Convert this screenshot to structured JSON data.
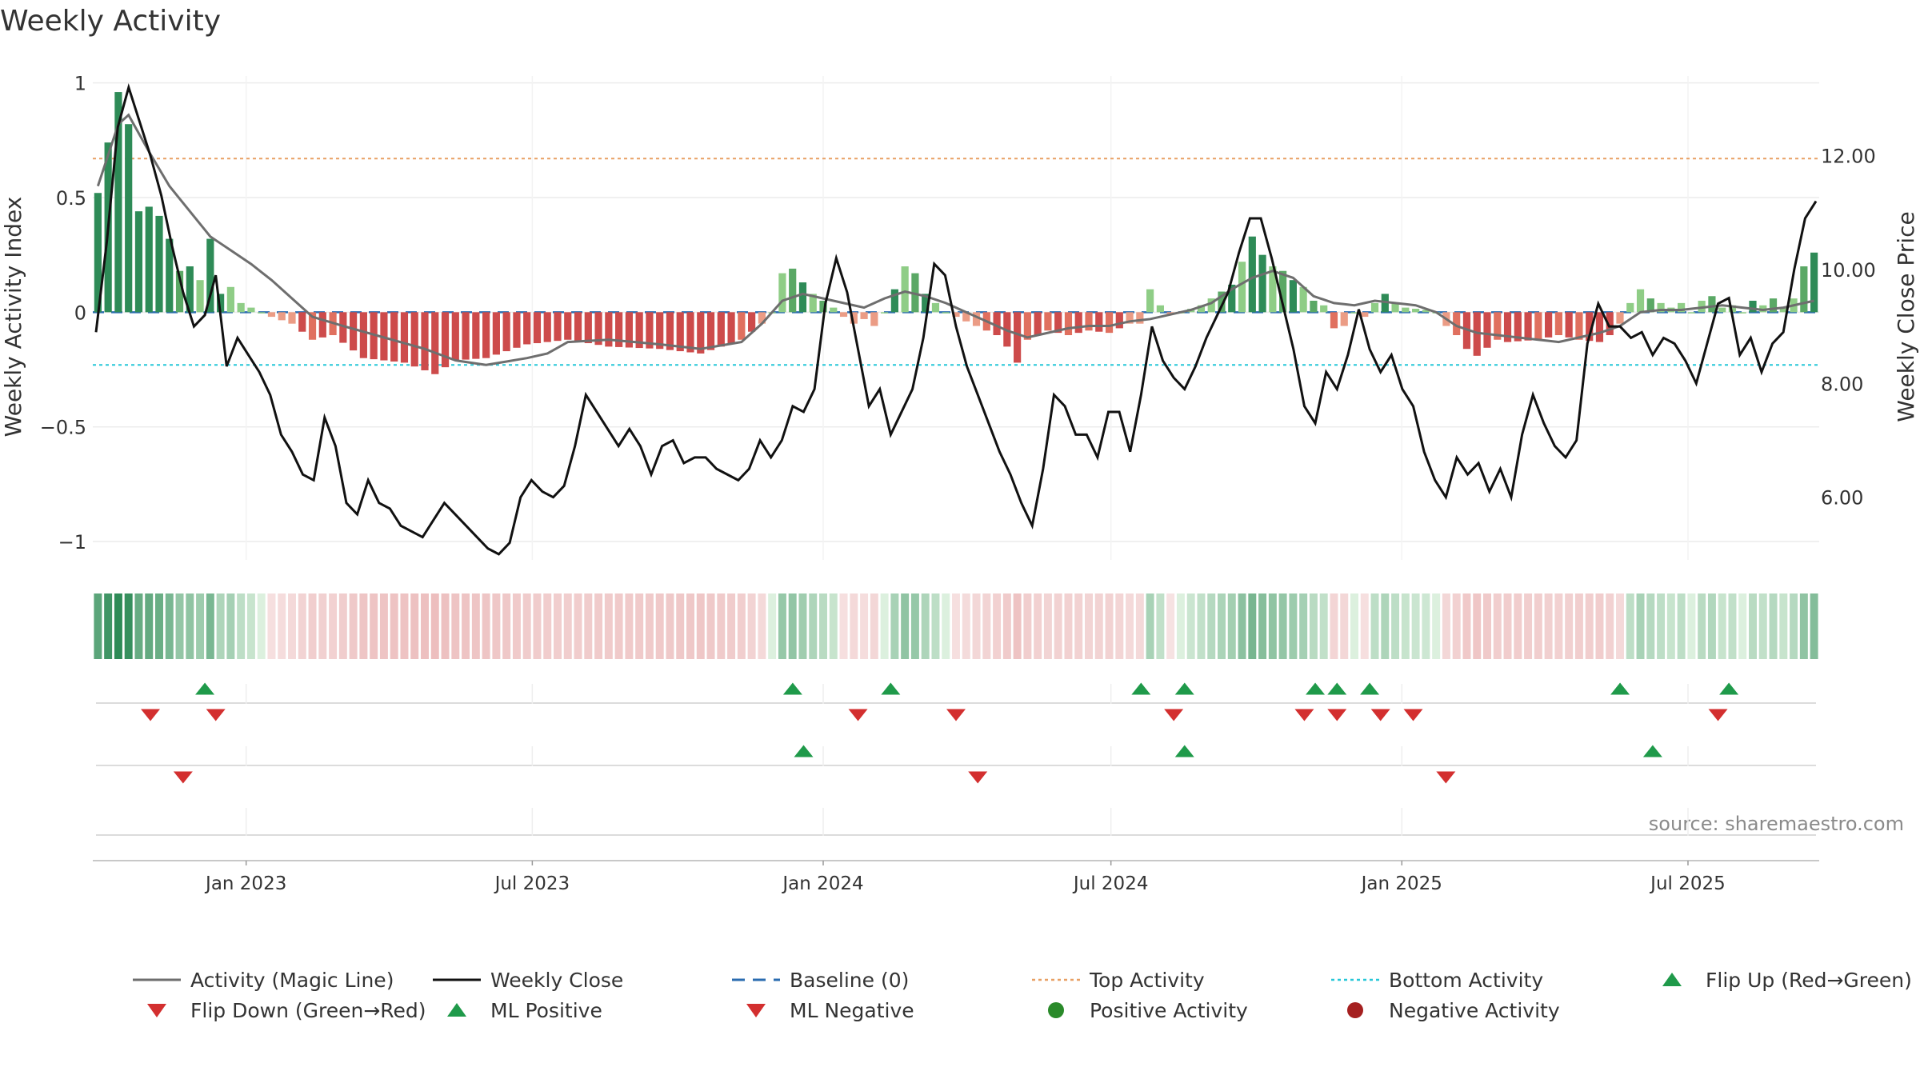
{
  "chart_data": {
    "type": "bar+line",
    "title": "Weekly Activity",
    "ylabel_left": "Weekly Activity Index",
    "ylabel_right": "Weekly Close Price",
    "source": "source: sharemaestro.com",
    "left_axis": {
      "ylim": [
        -1.08,
        1.03
      ],
      "ticks": [
        1,
        0.5,
        0,
        -0.5,
        -1
      ],
      "tick_labels": [
        "1",
        "0.5",
        "0",
        "−0.5",
        "−1"
      ]
    },
    "right_axis": {
      "ylim": [
        4.9,
        13.4
      ],
      "ticks": [
        12,
        10,
        8,
        6
      ],
      "tick_labels": [
        "12.00",
        "10.00",
        "8.00",
        "6.00"
      ]
    },
    "x_axis": {
      "start_date": "2022-09-26",
      "end_date": "2025-09-22",
      "ticks": [
        {
          "date": "2023-01-01",
          "label": "Jan 2023"
        },
        {
          "date": "2023-07-01",
          "label": "Jul 2023"
        },
        {
          "date": "2024-01-01",
          "label": "Jan 2024"
        },
        {
          "date": "2024-07-01",
          "label": "Jul 2024"
        },
        {
          "date": "2025-01-01",
          "label": "Jan 2025"
        },
        {
          "date": "2025-07-01",
          "label": "Jul 2025"
        }
      ]
    },
    "reference_lines": {
      "baseline": 0,
      "top_activity": 0.67,
      "bottom_activity": -0.23
    },
    "activity_anchors": [
      [
        0,
        0.52
      ],
      [
        2,
        0.96
      ],
      [
        3,
        0.82
      ],
      [
        4,
        0.44
      ],
      [
        5,
        0.46
      ],
      [
        6,
        0.42
      ],
      [
        7,
        0.32
      ],
      [
        8,
        0.18
      ],
      [
        9,
        0.2
      ],
      [
        10,
        0.14
      ],
      [
        11,
        0.32
      ],
      [
        12,
        0.08
      ],
      [
        13,
        0.11
      ],
      [
        14,
        0.04
      ],
      [
        15,
        0.02
      ],
      [
        16,
        0.0
      ],
      [
        17,
        -0.02
      ],
      [
        19,
        -0.05
      ],
      [
        21,
        -0.12
      ],
      [
        23,
        -0.1
      ],
      [
        26,
        -0.2
      ],
      [
        30,
        -0.22
      ],
      [
        33,
        -0.27
      ],
      [
        35,
        -0.21
      ],
      [
        38,
        -0.2
      ],
      [
        42,
        -0.14
      ],
      [
        46,
        -0.12
      ],
      [
        50,
        -0.15
      ],
      [
        55,
        -0.16
      ],
      [
        59,
        -0.18
      ],
      [
        63,
        -0.12
      ],
      [
        65,
        -0.05
      ],
      [
        66,
        0.0
      ],
      [
        67,
        0.17
      ],
      [
        68,
        0.19
      ],
      [
        69,
        0.13
      ],
      [
        70,
        0.08
      ],
      [
        72,
        0.02
      ],
      [
        73,
        -0.02
      ],
      [
        74,
        -0.05
      ],
      [
        75,
        -0.03
      ],
      [
        76,
        -0.06
      ],
      [
        77,
        0.0
      ],
      [
        79,
        0.2
      ],
      [
        80,
        0.17
      ],
      [
        81,
        0.08
      ],
      [
        82,
        0.04
      ],
      [
        83,
        0.0
      ],
      [
        84,
        -0.02
      ],
      [
        86,
        -0.06
      ],
      [
        88,
        -0.1
      ],
      [
        89,
        -0.15
      ],
      [
        90,
        -0.22
      ],
      [
        91,
        -0.12
      ],
      [
        93,
        -0.08
      ],
      [
        95,
        -0.1
      ],
      [
        97,
        -0.08
      ],
      [
        99,
        -0.09
      ],
      [
        101,
        -0.05
      ],
      [
        102,
        -0.05
      ],
      [
        103,
        0.1
      ],
      [
        104,
        0.03
      ],
      [
        105,
        -0.01
      ],
      [
        106,
        0.0
      ],
      [
        108,
        0.03
      ],
      [
        109,
        0.06
      ],
      [
        110,
        0.09
      ],
      [
        111,
        0.12
      ],
      [
        112,
        0.22
      ],
      [
        113,
        0.33
      ],
      [
        114,
        0.25
      ],
      [
        115,
        0.2
      ],
      [
        116,
        0.18
      ],
      [
        117,
        0.14
      ],
      [
        118,
        0.11
      ],
      [
        119,
        0.05
      ],
      [
        120,
        0.03
      ],
      [
        121,
        -0.07
      ],
      [
        122,
        -0.06
      ],
      [
        123,
        0.0
      ],
      [
        124,
        -0.02
      ],
      [
        125,
        0.04
      ],
      [
        126,
        0.08
      ],
      [
        127,
        0.04
      ],
      [
        128,
        0.02
      ],
      [
        130,
        0.01
      ],
      [
        131,
        0.0
      ],
      [
        132,
        -0.06
      ],
      [
        133,
        -0.1
      ],
      [
        134,
        -0.16
      ],
      [
        135,
        -0.19
      ],
      [
        137,
        -0.12
      ],
      [
        138,
        -0.13
      ],
      [
        141,
        -0.12
      ],
      [
        143,
        -0.1
      ],
      [
        145,
        -0.12
      ],
      [
        147,
        -0.13
      ],
      [
        148,
        -0.1
      ],
      [
        149,
        -0.05
      ],
      [
        150,
        0.04
      ],
      [
        151,
        0.1
      ],
      [
        152,
        0.06
      ],
      [
        153,
        0.04
      ],
      [
        154,
        0.02
      ],
      [
        155,
        0.04
      ],
      [
        156,
        0.0
      ],
      [
        157,
        0.05
      ],
      [
        158,
        0.07
      ],
      [
        159,
        0.02
      ],
      [
        160,
        0.03
      ],
      [
        161,
        0.0
      ],
      [
        162,
        0.05
      ],
      [
        163,
        0.03
      ],
      [
        164,
        0.06
      ],
      [
        165,
        0.02
      ],
      [
        166,
        0.06
      ],
      [
        167,
        0.2
      ],
      [
        168,
        0.26
      ]
    ],
    "magic_line_anchors": [
      [
        0,
        0.55
      ],
      [
        2,
        0.82
      ],
      [
        3,
        0.86
      ],
      [
        5,
        0.7
      ],
      [
        7,
        0.55
      ],
      [
        9,
        0.44
      ],
      [
        11,
        0.33
      ],
      [
        13,
        0.27
      ],
      [
        15,
        0.21
      ],
      [
        17,
        0.14
      ],
      [
        19,
        0.06
      ],
      [
        21,
        -0.02
      ],
      [
        24,
        -0.06
      ],
      [
        28,
        -0.11
      ],
      [
        32,
        -0.16
      ],
      [
        35,
        -0.21
      ],
      [
        38,
        -0.23
      ],
      [
        42,
        -0.2
      ],
      [
        44,
        -0.18
      ],
      [
        46,
        -0.13
      ],
      [
        50,
        -0.12
      ],
      [
        55,
        -0.14
      ],
      [
        59,
        -0.16
      ],
      [
        63,
        -0.13
      ],
      [
        65,
        -0.05
      ],
      [
        67,
        0.05
      ],
      [
        69,
        0.08
      ],
      [
        71,
        0.06
      ],
      [
        73,
        0.04
      ],
      [
        75,
        0.02
      ],
      [
        77,
        0.06
      ],
      [
        79,
        0.09
      ],
      [
        81,
        0.07
      ],
      [
        83,
        0.04
      ],
      [
        85,
        0.0
      ],
      [
        87,
        -0.04
      ],
      [
        89,
        -0.08
      ],
      [
        91,
        -0.11
      ],
      [
        93,
        -0.09
      ],
      [
        95,
        -0.07
      ],
      [
        97,
        -0.06
      ],
      [
        99,
        -0.06
      ],
      [
        101,
        -0.04
      ],
      [
        103,
        -0.03
      ],
      [
        105,
        -0.01
      ],
      [
        107,
        0.01
      ],
      [
        109,
        0.04
      ],
      [
        111,
        0.1
      ],
      [
        113,
        0.15
      ],
      [
        115,
        0.18
      ],
      [
        117,
        0.15
      ],
      [
        119,
        0.07
      ],
      [
        121,
        0.04
      ],
      [
        123,
        0.03
      ],
      [
        125,
        0.05
      ],
      [
        127,
        0.04
      ],
      [
        129,
        0.03
      ],
      [
        131,
        0.0
      ],
      [
        133,
        -0.06
      ],
      [
        135,
        -0.09
      ],
      [
        137,
        -0.1
      ],
      [
        139,
        -0.11
      ],
      [
        141,
        -0.12
      ],
      [
        143,
        -0.13
      ],
      [
        145,
        -0.11
      ],
      [
        147,
        -0.09
      ],
      [
        149,
        -0.06
      ],
      [
        151,
        0.0
      ],
      [
        153,
        0.01
      ],
      [
        155,
        0.01
      ],
      [
        157,
        0.02
      ],
      [
        159,
        0.03
      ],
      [
        161,
        0.02
      ],
      [
        163,
        0.01
      ],
      [
        165,
        0.02
      ],
      [
        167,
        0.04
      ],
      [
        168,
        0.05
      ]
    ],
    "close_anchors": [
      [
        0,
        8.9
      ],
      [
        1,
        10.5
      ],
      [
        2,
        12.5
      ],
      [
        3,
        13.2
      ],
      [
        4,
        12.6
      ],
      [
        5,
        12.0
      ],
      [
        6,
        11.3
      ],
      [
        7,
        10.4
      ],
      [
        8,
        9.6
      ],
      [
        9,
        9.0
      ],
      [
        10,
        9.2
      ],
      [
        11,
        9.9
      ],
      [
        12,
        8.3
      ],
      [
        13,
        8.8
      ],
      [
        14,
        8.5
      ],
      [
        15,
        8.2
      ],
      [
        16,
        7.8
      ],
      [
        17,
        7.1
      ],
      [
        18,
        6.8
      ],
      [
        19,
        6.4
      ],
      [
        20,
        6.3
      ],
      [
        21,
        7.4
      ],
      [
        22,
        6.9
      ],
      [
        23,
        5.9
      ],
      [
        24,
        5.7
      ],
      [
        25,
        6.3
      ],
      [
        26,
        5.9
      ],
      [
        27,
        5.8
      ],
      [
        28,
        5.5
      ],
      [
        29,
        5.4
      ],
      [
        30,
        5.3
      ],
      [
        31,
        5.6
      ],
      [
        32,
        5.9
      ],
      [
        33,
        5.7
      ],
      [
        34,
        5.5
      ],
      [
        35,
        5.3
      ],
      [
        36,
        5.1
      ],
      [
        37,
        5.0
      ],
      [
        38,
        5.2
      ],
      [
        39,
        6.0
      ],
      [
        40,
        6.3
      ],
      [
        41,
        6.1
      ],
      [
        42,
        6.0
      ],
      [
        43,
        6.2
      ],
      [
        44,
        6.9
      ],
      [
        45,
        7.8
      ],
      [
        46,
        7.5
      ],
      [
        47,
        7.2
      ],
      [
        48,
        6.9
      ],
      [
        49,
        7.2
      ],
      [
        50,
        6.9
      ],
      [
        51,
        6.4
      ],
      [
        52,
        6.9
      ],
      [
        53,
        7.0
      ],
      [
        54,
        6.6
      ],
      [
        55,
        6.7
      ],
      [
        56,
        6.7
      ],
      [
        57,
        6.5
      ],
      [
        58,
        6.4
      ],
      [
        59,
        6.3
      ],
      [
        60,
        6.5
      ],
      [
        61,
        7.0
      ],
      [
        62,
        6.7
      ],
      [
        63,
        7.0
      ],
      [
        64,
        7.6
      ],
      [
        65,
        7.5
      ],
      [
        66,
        7.9
      ],
      [
        67,
        9.4
      ],
      [
        68,
        10.2
      ],
      [
        69,
        9.6
      ],
      [
        70,
        8.6
      ],
      [
        71,
        7.6
      ],
      [
        72,
        7.9
      ],
      [
        73,
        7.1
      ],
      [
        74,
        7.5
      ],
      [
        75,
        7.9
      ],
      [
        76,
        8.8
      ],
      [
        77,
        10.1
      ],
      [
        78,
        9.9
      ],
      [
        79,
        9.0
      ],
      [
        80,
        8.3
      ],
      [
        81,
        7.8
      ],
      [
        82,
        7.3
      ],
      [
        83,
        6.8
      ],
      [
        84,
        6.4
      ],
      [
        85,
        5.9
      ],
      [
        86,
        5.5
      ],
      [
        87,
        6.5
      ],
      [
        88,
        7.8
      ],
      [
        89,
        7.6
      ],
      [
        90,
        7.1
      ],
      [
        91,
        7.1
      ],
      [
        92,
        6.7
      ],
      [
        93,
        7.5
      ],
      [
        94,
        7.5
      ],
      [
        95,
        6.8
      ],
      [
        96,
        7.8
      ],
      [
        97,
        9.0
      ],
      [
        98,
        8.4
      ],
      [
        99,
        8.1
      ],
      [
        100,
        7.9
      ],
      [
        101,
        8.3
      ],
      [
        102,
        8.8
      ],
      [
        103,
        9.2
      ],
      [
        104,
        9.6
      ],
      [
        105,
        10.3
      ],
      [
        106,
        10.9
      ],
      [
        107,
        10.9
      ],
      [
        108,
        10.2
      ],
      [
        109,
        9.4
      ],
      [
        110,
        8.6
      ],
      [
        111,
        7.6
      ],
      [
        112,
        7.3
      ],
      [
        113,
        8.2
      ],
      [
        114,
        7.9
      ],
      [
        115,
        8.5
      ],
      [
        116,
        9.3
      ],
      [
        117,
        8.6
      ],
      [
        118,
        8.2
      ],
      [
        119,
        8.5
      ],
      [
        120,
        7.9
      ],
      [
        121,
        7.6
      ],
      [
        122,
        6.8
      ],
      [
        123,
        6.3
      ],
      [
        124,
        6.0
      ],
      [
        125,
        6.7
      ],
      [
        126,
        6.4
      ],
      [
        127,
        6.6
      ],
      [
        128,
        6.1
      ],
      [
        129,
        6.5
      ],
      [
        130,
        6.0
      ],
      [
        131,
        7.1
      ],
      [
        132,
        7.8
      ],
      [
        133,
        7.3
      ],
      [
        134,
        6.9
      ],
      [
        135,
        6.7
      ],
      [
        136,
        7.0
      ],
      [
        137,
        8.7
      ],
      [
        138,
        9.4
      ],
      [
        139,
        9.0
      ],
      [
        140,
        9.0
      ],
      [
        141,
        8.8
      ],
      [
        142,
        8.9
      ],
      [
        143,
        8.5
      ],
      [
        144,
        8.8
      ],
      [
        145,
        8.7
      ],
      [
        146,
        8.4
      ],
      [
        147,
        8.0
      ],
      [
        148,
        8.7
      ],
      [
        149,
        9.4
      ],
      [
        150,
        9.5
      ],
      [
        151,
        8.5
      ],
      [
        152,
        8.8
      ],
      [
        153,
        8.2
      ],
      [
        154,
        8.7
      ],
      [
        155,
        8.9
      ],
      [
        156,
        10.0
      ],
      [
        157,
        10.9
      ],
      [
        158,
        11.2
      ]
    ],
    "close_total_points": 158,
    "flip_up_weeks": [
      10,
      64,
      73,
      96,
      100,
      112,
      114,
      117,
      140,
      150
    ],
    "flip_down_weeks": [
      5,
      11,
      70,
      79,
      99,
      111,
      114,
      118,
      121,
      149
    ],
    "ml_positive_weeks": [
      65,
      100,
      143
    ],
    "ml_negative_weeks": [
      8,
      81,
      124
    ],
    "colors": {
      "pos_strong": "#2e8b57",
      "pos_mid": "#5aa865",
      "pos_light": "#8fcd86",
      "neg_strong": "#cd4b4b",
      "neg_mid": "#e0705f",
      "neg_light": "#eb9c85",
      "magic_line": "#6e6e6e",
      "close_line": "#111111",
      "baseline": "#2b6cb0",
      "top": "#e8a064",
      "bottom": "#27c7d8",
      "up": "#1f9a4a",
      "down": "#d32f2f",
      "pos_dot": "#2a8a2a",
      "neg_dot": "#a52020"
    },
    "legend": [
      {
        "label": "Activity (Magic Line)",
        "type": "line",
        "color": "#6e6e6e"
      },
      {
        "label": "Weekly Close",
        "type": "line",
        "color": "#111111"
      },
      {
        "label": "Baseline (0)",
        "type": "dash",
        "color": "#2b6cb0"
      },
      {
        "label": "Top Activity",
        "type": "dot-line",
        "color": "#e8a064"
      },
      {
        "label": "Bottom Activity",
        "type": "dot-line",
        "color": "#27c7d8"
      },
      {
        "label": "Flip Up (Red→Green)",
        "type": "tri-up",
        "color": "#1f9a4a"
      },
      {
        "label": "Flip Down (Green→Red)",
        "type": "tri-down",
        "color": "#d32f2f"
      },
      {
        "label": "ML Positive",
        "type": "tri-up",
        "color": "#1f9a4a"
      },
      {
        "label": "ML Negative",
        "type": "tri-down",
        "color": "#d32f2f"
      },
      {
        "label": "Positive Activity",
        "type": "circle",
        "color": "#2a8a2a"
      },
      {
        "label": "Negative Activity",
        "type": "circle",
        "color": "#a52020"
      }
    ]
  }
}
